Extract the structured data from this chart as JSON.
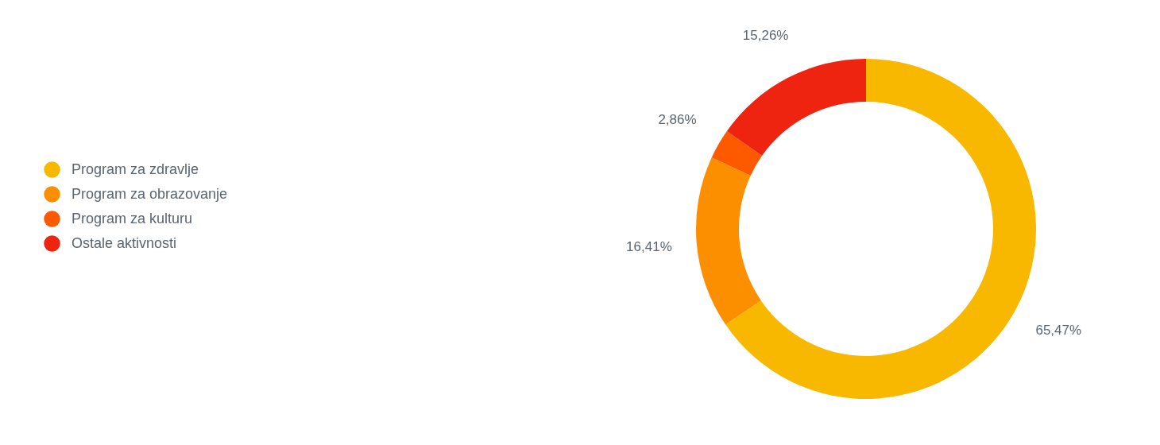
{
  "chart_data": {
    "type": "donut",
    "categories": [
      "Program za zdravlje",
      "Program za obrazovanje",
      "Program za kulturu",
      "Ostale aktivnosti"
    ],
    "values": [
      65.47,
      16.41,
      2.86,
      15.26
    ],
    "colors": [
      "#f8b800",
      "#fc8f00",
      "#fd5a00",
      "#ef2410"
    ],
    "value_labels": [
      "65,47%",
      "16,41%",
      "2,86%",
      "15,26%"
    ],
    "legend": "left"
  }
}
